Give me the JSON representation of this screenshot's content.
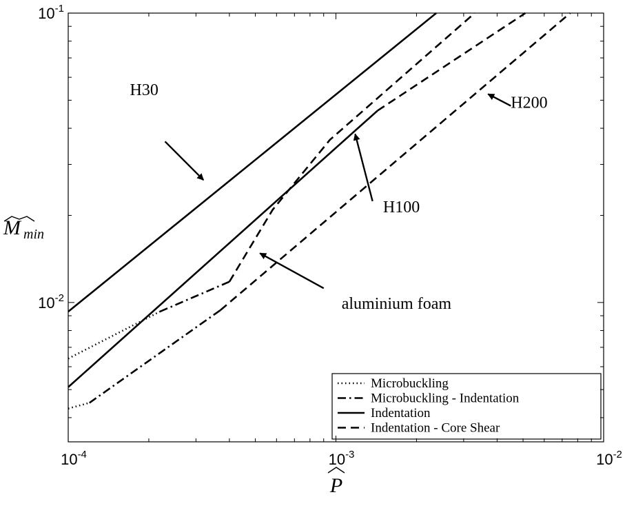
{
  "chart_data": {
    "type": "line",
    "xscale": "log",
    "yscale": "log",
    "xlim": [
      0.0001,
      0.01
    ],
    "ylim": [
      0.0033,
      0.1
    ],
    "xlabel": "P",
    "ylabel": "M",
    "ylabel_sub": "min",
    "grid": false,
    "x_ticks": [
      {
        "base": "10",
        "exp": "-4",
        "value": 0.0001
      },
      {
        "base": "10",
        "exp": "-3",
        "value": 0.001
      },
      {
        "base": "10",
        "exp": "-2",
        "value": 0.01
      }
    ],
    "y_ticks": [
      {
        "base": "10",
        "exp": "-2",
        "value": 0.01
      },
      {
        "base": "10",
        "exp": "-1",
        "value": 0.1
      }
    ],
    "legend": {
      "position": "bottom-right",
      "entries": [
        {
          "label": "Microbuckling",
          "style": "dotted"
        },
        {
          "label": "Microbuckling - Indentation",
          "style": "dashdot"
        },
        {
          "label": "Indentation",
          "style": "solid"
        },
        {
          "label": "Indentation - Core Shear",
          "style": "dashed"
        }
      ]
    },
    "series": [
      {
        "regime": "Indentation",
        "style": "solid",
        "points": [
          [
            0.0001,
            0.0093
          ],
          [
            0.00237,
            0.1
          ]
        ]
      },
      {
        "regime": "Microbuckling",
        "style": "dotted",
        "points": [
          [
            0.0001,
            0.0064
          ],
          [
            0.00022,
            0.0093
          ]
        ]
      },
      {
        "regime": "Microbuckling - Indentation",
        "style": "dashdot",
        "points": [
          [
            0.00022,
            0.0093
          ],
          [
            0.0004,
            0.0118
          ]
        ]
      },
      {
        "regime": "Indentation - Core Shear",
        "style": "dashed",
        "points": [
          [
            0.0004,
            0.0118
          ],
          [
            0.00058,
            0.0209
          ],
          [
            0.00095,
            0.0365
          ],
          [
            0.0033,
            0.1
          ]
        ]
      },
      {
        "regime": "Indentation",
        "style": "solid",
        "points": [
          [
            0.0001,
            0.0051
          ],
          [
            0.00143,
            0.046
          ]
        ]
      },
      {
        "regime": "Indentation - Core Shear",
        "style": "dashed",
        "points": [
          [
            0.00143,
            0.046
          ],
          [
            0.0051,
            0.1
          ]
        ]
      },
      {
        "regime": "Microbuckling",
        "style": "dotted",
        "points": [
          [
            0.0001,
            0.0043
          ],
          [
            0.00012,
            0.0045
          ]
        ]
      },
      {
        "regime": "Microbuckling - Indentation",
        "style": "dashdot",
        "points": [
          [
            0.00012,
            0.0045
          ],
          [
            0.00037,
            0.0094
          ]
        ]
      },
      {
        "regime": "Indentation - Core Shear",
        "style": "dashed",
        "points": [
          [
            0.00037,
            0.0094
          ],
          [
            0.0075,
            0.1
          ]
        ]
      }
    ],
    "annotations": [
      {
        "text": "H30",
        "text_at": [
          0.00017,
          0.052
        ],
        "arrow_from": [
          0.00023,
          0.036
        ],
        "arrow_to": [
          0.00032,
          0.0265
        ]
      },
      {
        "text": "H100",
        "text_at": [
          0.0015,
          0.0205
        ],
        "arrow_from": [
          0.00137,
          0.0224
        ],
        "arrow_to": [
          0.00118,
          0.0382
        ]
      },
      {
        "text": "H200",
        "text_at": [
          0.0045,
          0.047
        ],
        "arrow_from": [
          0.0045,
          0.0478
        ],
        "arrow_to": [
          0.0037,
          0.0525
        ]
      },
      {
        "text": "aluminium foam",
        "text_at": [
          0.00105,
          0.0095
        ],
        "arrow_from": [
          0.0009,
          0.0112
        ],
        "arrow_to": [
          0.00052,
          0.0148
        ]
      }
    ]
  }
}
